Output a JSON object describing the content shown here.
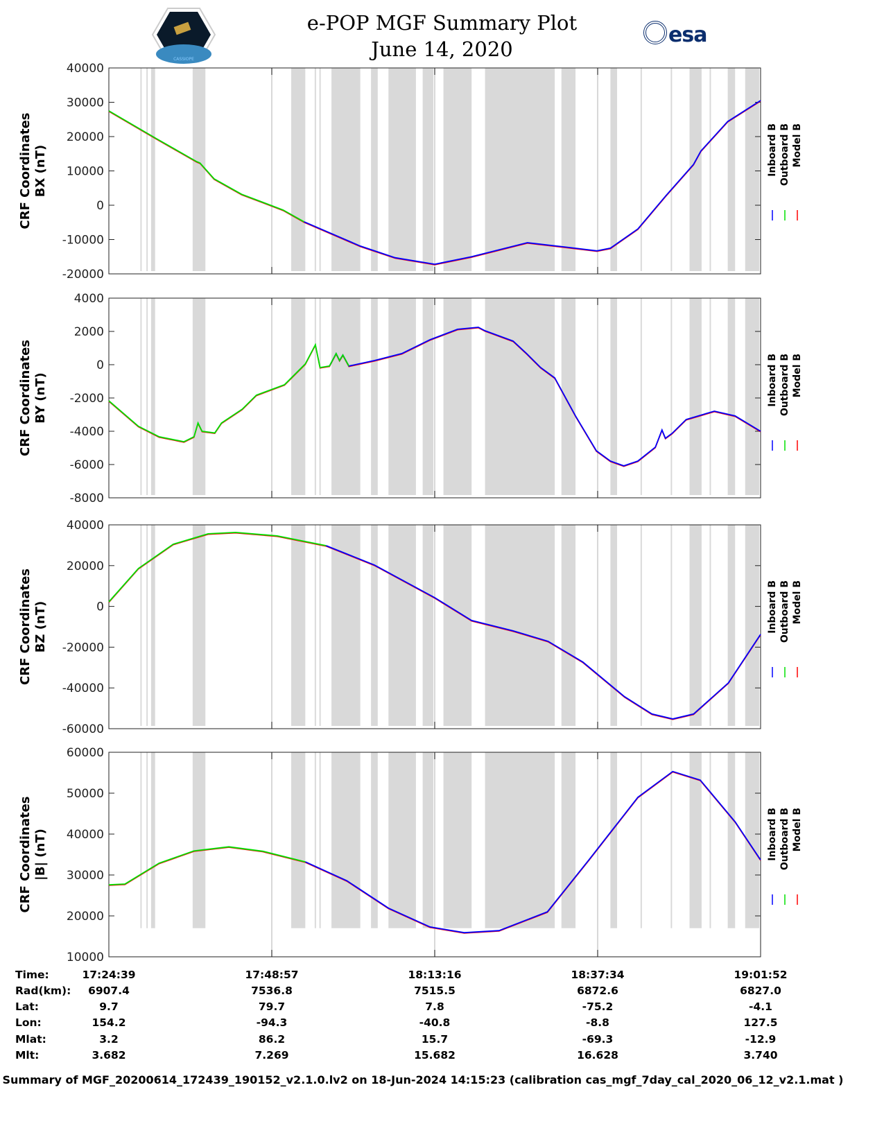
{
  "header": {
    "title_line1": "e-POP MGF Summary Plot",
    "title_line2": "June 14, 2020",
    "logo_right": "esa",
    "logo_left": "CASSIOPE"
  },
  "colors": {
    "inboard": "#0000ff",
    "outboard": "#00e000",
    "model": "#ff0000",
    "band": "#d9d9d9"
  },
  "chart_data": [
    {
      "type": "line",
      "ylabel1": "CRF Coordinates",
      "ylabel2": "BX (nT)",
      "ylim": [
        -20000,
        40000
      ],
      "yticks": [
        40000,
        30000,
        20000,
        10000,
        0,
        -10000,
        -20000
      ],
      "green_until": 29.5,
      "x": [
        0,
        7.1,
        13.1,
        13.6,
        15.7,
        19.8,
        26.0,
        29.1,
        37.5,
        42.7,
        48.6,
        54.1,
        62.4,
        68.6,
        72.8,
        74.8,
        78.9,
        83.1,
        87.2,
        88.3,
        92.3,
        97.2
      ],
      "values": [
        27500,
        19400,
        12700,
        12300,
        7700,
        3200,
        -1400,
        -4800,
        -11900,
        -15300,
        -17200,
        -15000,
        -10900,
        -12300,
        -13300,
        -12500,
        -6900,
        2800,
        11900,
        15800,
        24400,
        30500
      ]
    },
    {
      "type": "line",
      "ylabel1": "CRF Coordinates",
      "ylabel2": "BY (nT)",
      "ylim": [
        -8000,
        4000
      ],
      "yticks": [
        4000,
        2000,
        0,
        -2000,
        -4000,
        -6000,
        -8000
      ],
      "green_until": 35.8,
      "x": [
        0,
        4.4,
        7.5,
        11.2,
        12.7,
        13.3,
        13.9,
        15.8,
        16.8,
        19.9,
        22.0,
        26.2,
        29.3,
        30.8,
        31.5,
        32.9,
        33.9,
        34.4,
        34.9,
        35.8,
        39.6,
        43.7,
        47.9,
        52.0,
        55.1,
        56.1,
        60.3,
        62.3,
        64.4,
        66.5,
        69.6,
        72.7,
        74.8,
        76.8,
        78.9,
        81.5,
        82.5,
        83.0,
        84.0,
        86.1,
        90.3,
        93.4,
        97.2
      ],
      "values": [
        -2170,
        -3700,
        -4330,
        -4630,
        -4330,
        -3500,
        -4000,
        -4100,
        -3500,
        -2670,
        -1830,
        -1200,
        50,
        1200,
        -170,
        -80,
        670,
        250,
        580,
        -80,
        250,
        670,
        1500,
        2130,
        2250,
        2040,
        1420,
        670,
        -170,
        -790,
        -3080,
        -5170,
        -5790,
        -6080,
        -5790,
        -4960,
        -3920,
        -4420,
        -4130,
        -3290,
        -2790,
        -3080,
        -4000
      ]
    },
    {
      "type": "line",
      "ylabel1": "CRF Coordinates",
      "ylabel2": "BZ (nT)",
      "ylim": [
        -60000,
        40000
      ],
      "yticks": [
        40000,
        20000,
        0,
        -20000,
        -40000,
        -60000
      ],
      "green_until": 32.4,
      "x": [
        0,
        4.4,
        9.6,
        14.8,
        18.9,
        25.1,
        32.4,
        39.6,
        48.6,
        54.1,
        60.3,
        65.5,
        70.7,
        76.9,
        81.0,
        84.1,
        87.2,
        92.4,
        97.2
      ],
      "values": [
        2260,
        18600,
        30500,
        35600,
        36300,
        34600,
        29800,
        20300,
        4300,
        -6900,
        -12000,
        -17100,
        -27300,
        -44300,
        -52800,
        -55200,
        -52800,
        -37500,
        -13700
      ]
    },
    {
      "type": "line",
      "ylabel1": "CRF Coordinates",
      "ylabel2": "|B| (nT)",
      "ylim": [
        10000,
        60000
      ],
      "yticks": [
        60000,
        50000,
        40000,
        30000,
        20000,
        10000
      ],
      "green_until": 29.3,
      "x": [
        0,
        2.4,
        7.5,
        12.7,
        17.9,
        23.0,
        29.3,
        35.5,
        41.7,
        47.9,
        53.0,
        58.2,
        65.4,
        71.6,
        78.9,
        84.1,
        88.2,
        93.4,
        97.2
      ],
      "values": [
        27600,
        27800,
        32900,
        35900,
        36900,
        35800,
        33200,
        28600,
        21900,
        17300,
        15900,
        16400,
        21000,
        33700,
        49000,
        55300,
        53200,
        43000,
        33700
      ]
    }
  ],
  "xlim_minutes": [
    0,
    97.2
  ],
  "xticks_minutes": [
    0,
    24.3,
    48.6,
    72.9,
    97.2
  ],
  "data_gaps_minutes": [
    [
      4.7,
      4.9
    ],
    [
      5.6,
      5.8
    ],
    [
      6.3,
      6.9
    ],
    [
      12.5,
      14.4
    ],
    [
      27.2,
      29.3
    ],
    [
      30.7,
      30.9
    ],
    [
      31.4,
      31.6
    ],
    [
      33.2,
      37.5
    ],
    [
      39.1,
      40.1
    ],
    [
      41.7,
      45.8
    ],
    [
      46.8,
      48.4
    ],
    [
      49.9,
      54.1
    ],
    [
      56.1,
      66.5
    ],
    [
      67.5,
      69.6
    ],
    [
      74.8,
      75.8
    ],
    [
      79.3,
      79.5
    ],
    [
      83.8,
      84.0
    ],
    [
      86.6,
      88.4
    ],
    [
      89.6,
      89.8
    ],
    [
      92.3,
      93.4
    ],
    [
      94.9,
      97.0
    ]
  ],
  "legend": [
    "Inboard B",
    "Outboard B",
    "Model B"
  ],
  "table": {
    "labels": [
      "Time:",
      "Rad(km):",
      "Lat:",
      "Lon:",
      "Mlat:",
      "Mlt:"
    ],
    "columns": [
      [
        "17:24:39",
        "6907.4",
        "9.7",
        "154.2",
        "3.2",
        "3.682"
      ],
      [
        "17:48:57",
        "7536.8",
        "79.7",
        "-94.3",
        "86.2",
        "7.269"
      ],
      [
        "18:13:16",
        "7515.5",
        "7.8",
        "-40.8",
        "15.7",
        "15.682"
      ],
      [
        "18:37:34",
        "6872.6",
        "-75.2",
        "-8.8",
        "-69.3",
        "16.628"
      ],
      [
        "19:01:52",
        "6827.0",
        "-4.1",
        "127.5",
        "-12.9",
        "3.740"
      ]
    ]
  },
  "footer": "Summary of MGF_20200614_172439_190152_v2.1.0.lv2 on 18-Jun-2024 14:15:23 (calibration cas_mgf_7day_cal_2020_06_12_v2.1.mat )"
}
